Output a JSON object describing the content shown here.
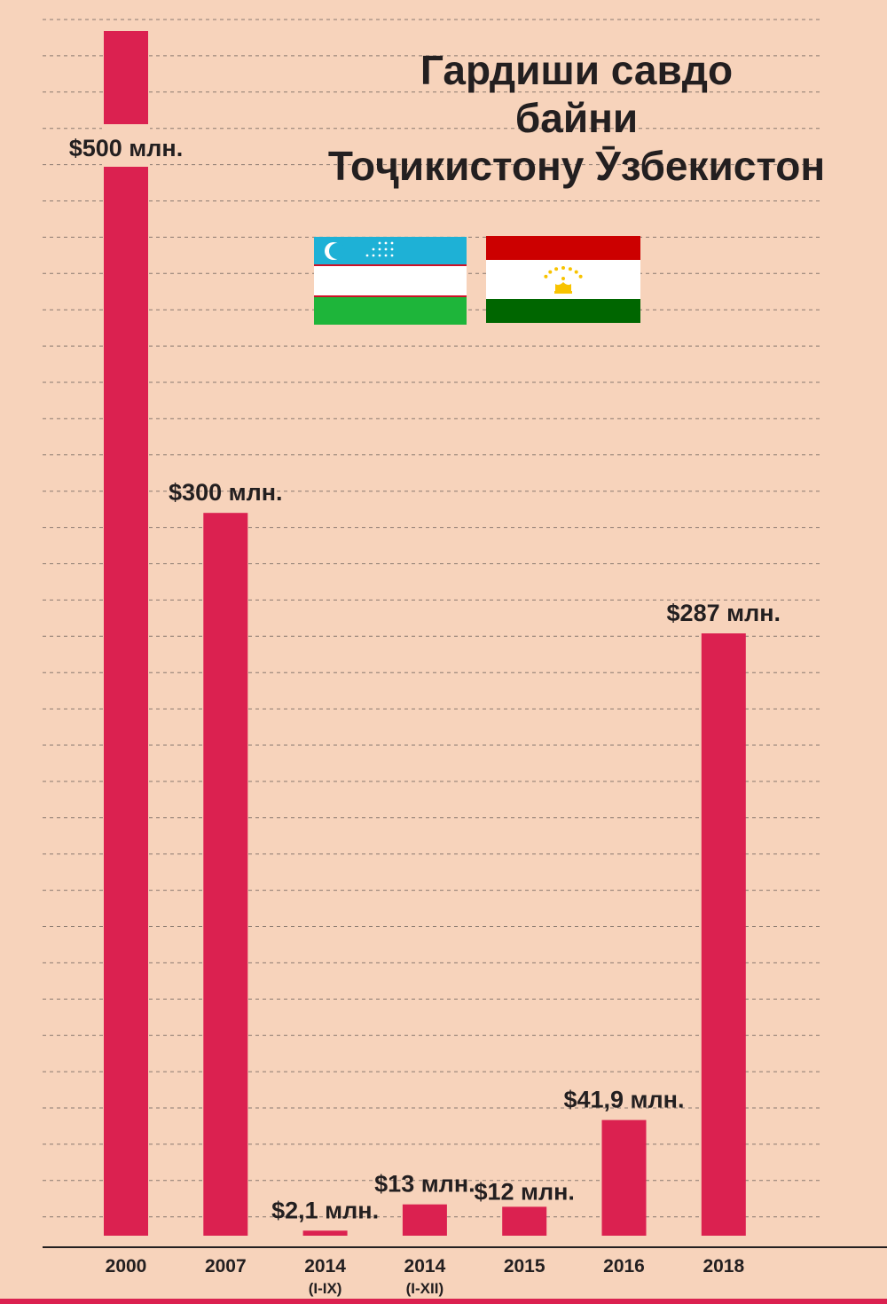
{
  "title_lines": [
    "Гардиши савдо",
    "байни",
    "Тоҷикистону Ӯзбекистон"
  ],
  "flags": [
    {
      "name": "uzbekistan-flag",
      "colors": {
        "blue": "#1eb1d6",
        "white": "#ffffff",
        "red": "#ce1126",
        "green": "#1eb53a"
      }
    },
    {
      "name": "tajikistan-flag",
      "colors": {
        "red": "#cc0000",
        "white": "#ffffff",
        "green": "#006600",
        "gold": "#f8c300"
      }
    }
  ],
  "chart_data": {
    "type": "bar",
    "bar_color": "#db2150",
    "categories": [
      {
        "year": "2000",
        "sub": ""
      },
      {
        "year": "2007",
        "sub": ""
      },
      {
        "year": "2014",
        "sub": "(I-IX)"
      },
      {
        "year": "2014",
        "sub": "(I-XII)"
      },
      {
        "year": "2015",
        "sub": ""
      },
      {
        "year": "2016",
        "sub": ""
      },
      {
        "year": "2018",
        "sub": ""
      }
    ],
    "values": [
      500,
      300,
      2.1,
      13,
      12,
      41.9,
      287
    ],
    "display_heights": [
      500,
      300,
      2.1,
      13,
      12,
      48,
      250
    ],
    "labels": [
      "$500 млн.",
      "$300 млн.",
      "$2,1 млн.",
      "$13 млн.",
      "$12 млн.",
      "$41,9 млн.",
      "$287 млн."
    ],
    "units": "млн. $",
    "grid": "dashed-horizontal",
    "title": ""
  }
}
